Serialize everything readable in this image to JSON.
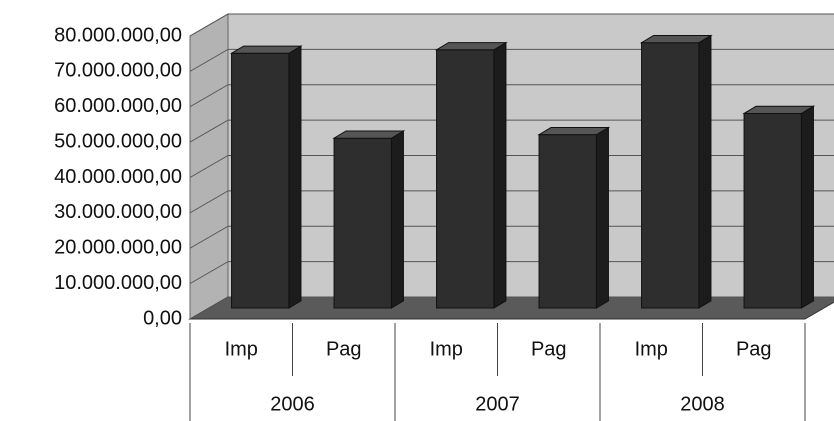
{
  "chart_data": {
    "type": "bar3d",
    "categories": [
      "Imp",
      "Pag",
      "Imp",
      "Pag",
      "Imp",
      "Pag"
    ],
    "groups": [
      "2006",
      "2007",
      "2008"
    ],
    "values": [
      72000000,
      48000000,
      73000000,
      49000000,
      75000000,
      55000000
    ],
    "color": "#2e2e2e",
    "ylim": [
      0,
      80000000
    ],
    "yticks": [
      {
        "value": 0,
        "label": "0,00"
      },
      {
        "value": 10000000,
        "label": "10.000.000,00"
      },
      {
        "value": 20000000,
        "label": "20.000.000,00"
      },
      {
        "value": 30000000,
        "label": "30.000.000,00"
      },
      {
        "value": 40000000,
        "label": "40.000.000,00"
      },
      {
        "value": 50000000,
        "label": "50.000.000,00"
      },
      {
        "value": 60000000,
        "label": "60.000.000,00"
      },
      {
        "value": 70000000,
        "label": "70.000.000,00"
      },
      {
        "value": 80000000,
        "label": "80.000.000,00"
      }
    ],
    "grid": true
  }
}
